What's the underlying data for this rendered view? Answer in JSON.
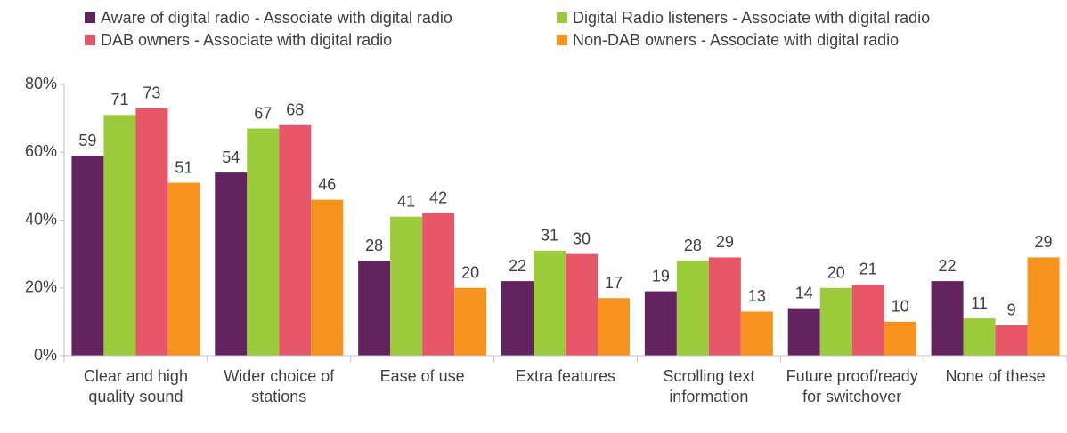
{
  "chart_data": {
    "type": "bar",
    "categories": [
      "Clear and high quality sound",
      "Wider choice of stations",
      "Ease of use",
      "Extra features",
      "Scrolling text information",
      "Future proof/ready for switchover",
      "None of these"
    ],
    "series": [
      {
        "name": "Aware of digital radio - Associate with digital radio",
        "color": "#62235f",
        "values": [
          59,
          54,
          28,
          22,
          19,
          14,
          22
        ]
      },
      {
        "name": "Digital Radio listeners - Associate with digital radio",
        "color": "#9bcb3b",
        "values": [
          71,
          67,
          41,
          31,
          28,
          20,
          11
        ]
      },
      {
        "name": "DAB owners - Associate with digital radio",
        "color": "#e8566a",
        "values": [
          73,
          68,
          42,
          30,
          29,
          21,
          9
        ]
      },
      {
        "name": "Non-DAB owners - Associate with digital radio",
        "color": "#f7941d",
        "values": [
          51,
          46,
          20,
          17,
          13,
          10,
          29
        ]
      }
    ],
    "ylim": [
      0,
      80
    ],
    "yticks": [
      {
        "value": 0,
        "label": "0%"
      },
      {
        "value": 20,
        "label": "20%"
      },
      {
        "value": 40,
        "label": "40%"
      },
      {
        "value": 60,
        "label": "60%"
      },
      {
        "value": 80,
        "label": "80%"
      }
    ],
    "grid": false
  }
}
